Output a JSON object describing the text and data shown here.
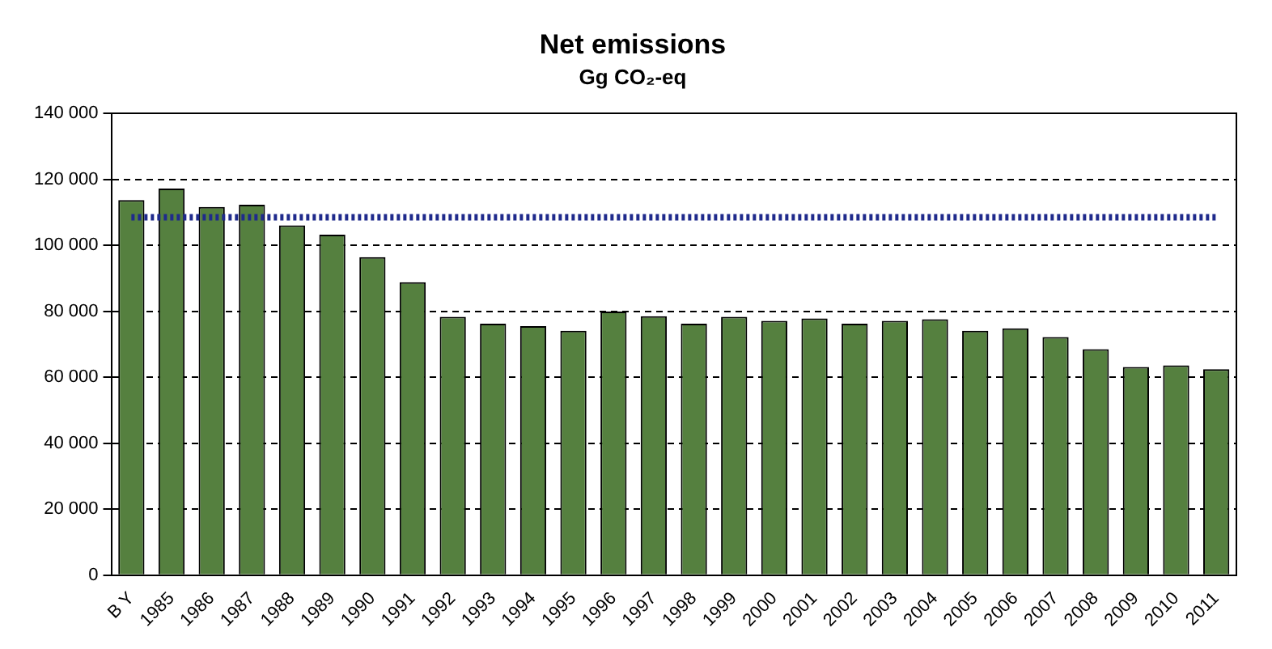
{
  "chart_data": {
    "type": "bar",
    "title": "Net emissions",
    "subtitle": "Gg CO₂-eq",
    "categories": [
      "B Y",
      "1985",
      "1986",
      "1987",
      "1988",
      "1989",
      "1990",
      "1991",
      "1992",
      "1993",
      "1994",
      "1995",
      "1996",
      "1997",
      "1998",
      "1999",
      "2000",
      "2001",
      "2002",
      "2003",
      "2004",
      "2005",
      "2006",
      "2007",
      "2008",
      "2009",
      "2010",
      "2011"
    ],
    "series": [
      {
        "color": "#55803f",
        "values": [
          113700,
          117200,
          111600,
          112300,
          106000,
          103200,
          96400,
          88800,
          78300,
          76200,
          75500,
          74100,
          79900,
          78500,
          76200,
          78300,
          77100,
          77800,
          76200,
          77100,
          77600,
          74100,
          74800,
          72200,
          68500,
          63100,
          63600,
          62400
        ]
      },
      {
        "type": "line",
        "color": "#1f2a8c",
        "line_style": "dotted",
        "marker": "none",
        "values": [
          108500,
          108500,
          108500,
          108500,
          108500,
          108500,
          108500,
          108500,
          108500,
          108500,
          108500,
          108500,
          108500,
          108500,
          108500,
          108500,
          108500,
          108500,
          108500,
          108500,
          108500,
          108500,
          108500,
          108500,
          108500,
          108500,
          108500,
          108500
        ]
      }
    ],
    "ylim": [
      0,
      140000
    ],
    "yticks": [
      {
        "value": 0,
        "label": "0"
      },
      {
        "value": 20000,
        "label": "20 000"
      },
      {
        "value": 40000,
        "label": "40 000"
      },
      {
        "value": 60000,
        "label": "60 000"
      },
      {
        "value": 80000,
        "label": "80 000"
      },
      {
        "value": 100000,
        "label": "100 000"
      },
      {
        "value": 120000,
        "label": "120 000"
      },
      {
        "value": 140000,
        "label": "140 000"
      }
    ],
    "grid": "y",
    "legend": false
  }
}
